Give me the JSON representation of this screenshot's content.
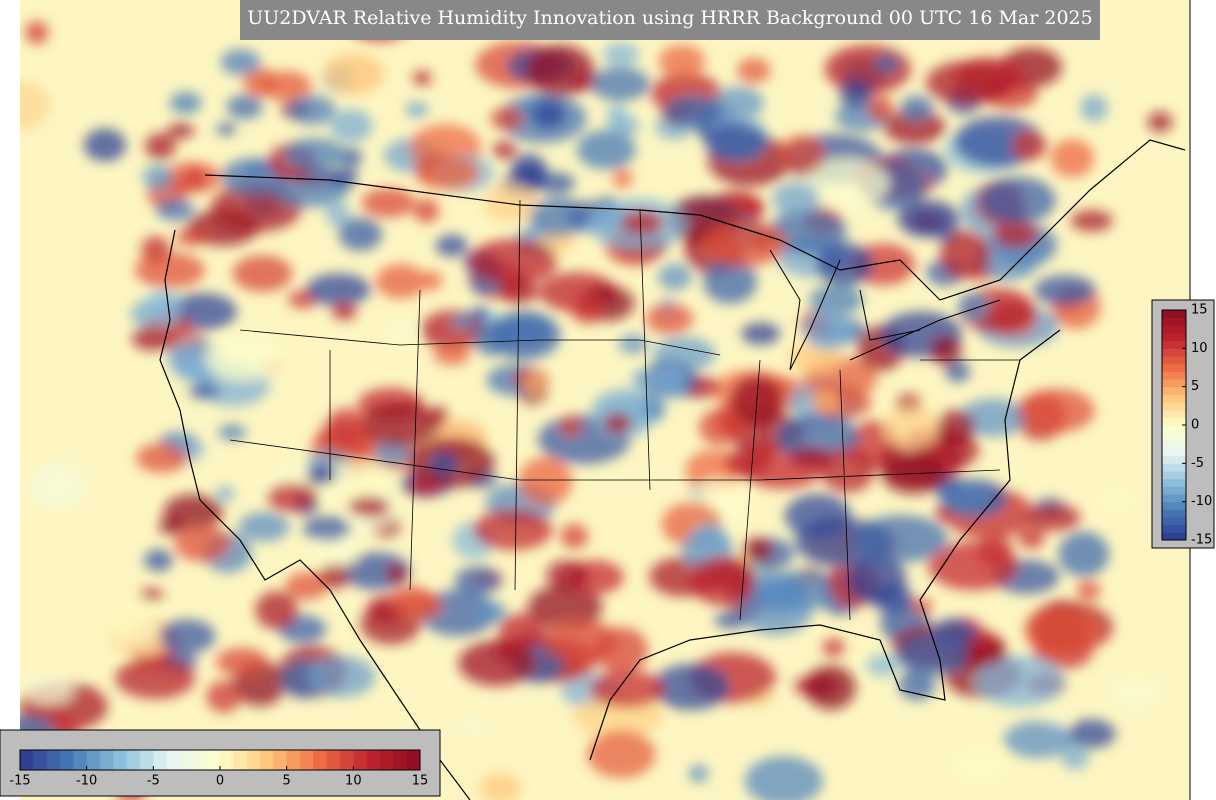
{
  "title": "UU2DVAR Relative Humidity Innovation using HRRR Background 00 UTC 16 Mar 2025",
  "colormap": [
    "#2b3990",
    "#4778b5",
    "#8cbfdc",
    "#e8f5f4",
    "#fefec8",
    "#fdc478",
    "#ee6b45",
    "#c0242e",
    "#8a0b21"
  ],
  "colorbar_bottom": {
    "range": [
      -15,
      15
    ],
    "ticks": [
      -15,
      -10,
      -5,
      0,
      5,
      10,
      15
    ]
  },
  "colorbar_right": {
    "range": [
      -15,
      15
    ],
    "ticks": [
      15,
      10,
      5,
      0,
      -5,
      -10,
      -15
    ]
  }
}
